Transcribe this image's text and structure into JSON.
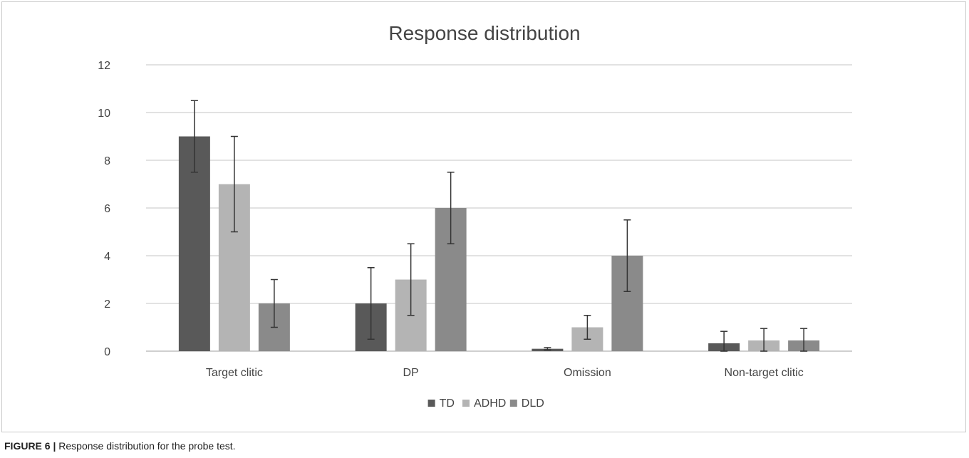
{
  "chart_data": {
    "type": "bar",
    "title": "Response distribution",
    "categories": [
      "Target clitic",
      "DP",
      "Omission",
      "Non-target clitic"
    ],
    "series": [
      {
        "name": "TD",
        "color": "#595959",
        "values": [
          9,
          2,
          0.1,
          0.33
        ],
        "errors": [
          1.5,
          1.5,
          0.05,
          0.5
        ]
      },
      {
        "name": "ADHD",
        "color": "#b4b4b4",
        "values": [
          7,
          3,
          1,
          0.45
        ],
        "errors": [
          2,
          1.5,
          0.5,
          0.5
        ]
      },
      {
        "name": "DLD",
        "color": "#8a8a8a",
        "values": [
          2,
          6,
          4,
          0.45
        ],
        "errors": [
          1,
          1.5,
          1.5,
          0.5
        ]
      }
    ],
    "xlabel": "",
    "ylabel": "",
    "ylim": [
      0,
      12
    ],
    "yticks": [
      0,
      2,
      4,
      6,
      8,
      10,
      12
    ],
    "grid": true,
    "legend": "bottom"
  },
  "caption": {
    "label": "FIGURE 6 |",
    "text": " Response distribution for the probe test."
  }
}
